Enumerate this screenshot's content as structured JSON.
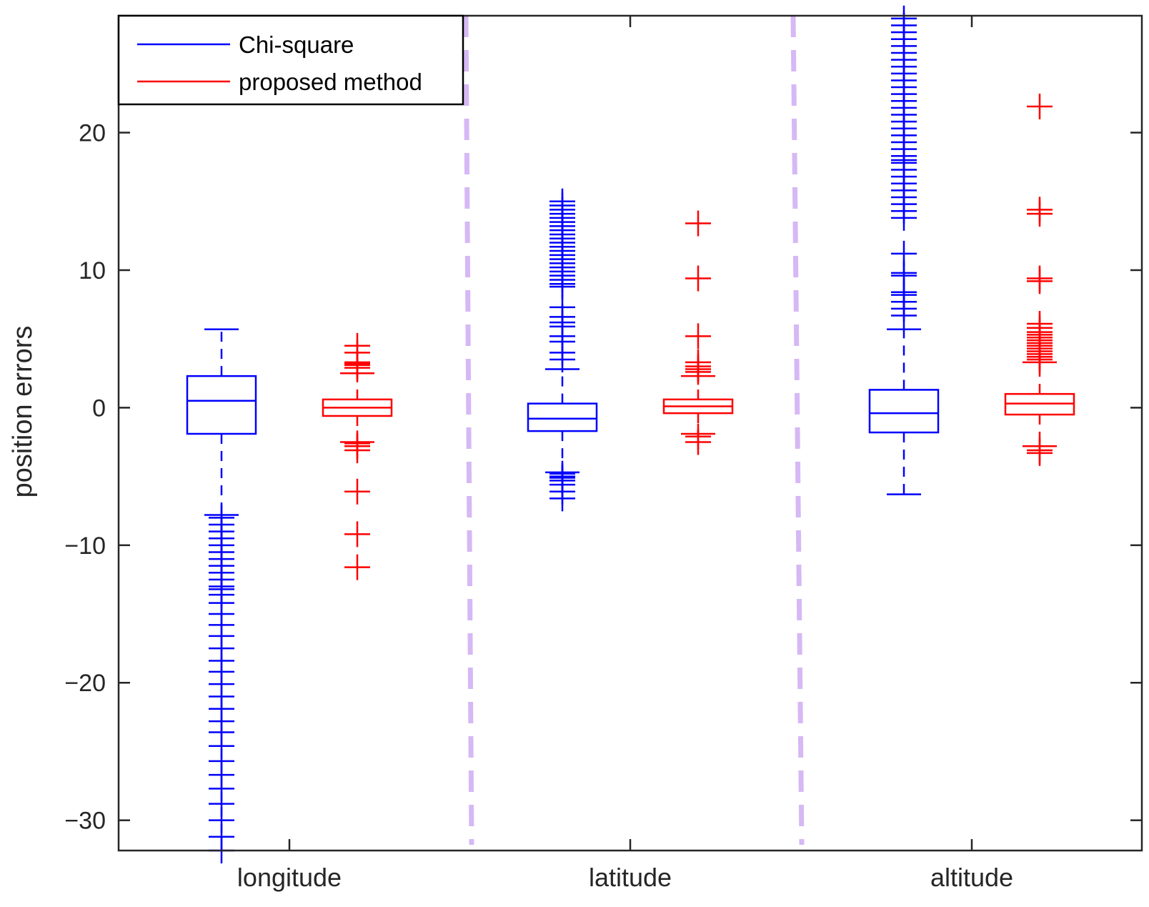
{
  "chart_data": {
    "type": "box",
    "title": "",
    "xlabel": "",
    "ylabel": "position errors",
    "ylim": [
      -32.2,
      28.5
    ],
    "yticks": [
      -30,
      -20,
      -10,
      0,
      10,
      20
    ],
    "ytick_labels": [
      "−30",
      "−20",
      "−10",
      "0",
      "10",
      "20"
    ],
    "grid": false,
    "legend_position": "top-left",
    "categories": [
      "longitude",
      "latitude",
      "altitude"
    ],
    "series": [
      {
        "name": "Chi-square",
        "color": "#0000ff",
        "boxes": [
          {
            "category": "longitude",
            "median": 0.5,
            "q1": -1.9,
            "q3": 2.3,
            "whisker_low": -7.8,
            "whisker_high": 5.7,
            "outliers": [
              -8,
              -8.5,
              -9,
              -9.5,
              -10,
              -10.5,
              -11,
              -11.5,
              -12,
              -12.5,
              -13,
              -13.2,
              -13.6,
              -14.2,
              -15,
              -15.8,
              -16.6,
              -17.5,
              -18.4,
              -19.2,
              -20.1,
              -21,
              -21.9,
              -22.8,
              -23.6,
              -24.6,
              -25.7,
              -26.7,
              -27.7,
              -28.8,
              -30,
              -31.2,
              -32.2
            ]
          },
          {
            "category": "latitude",
            "median": -0.8,
            "q1": -1.7,
            "q3": 0.3,
            "whisker_low": -4.7,
            "whisker_high": 2.8,
            "outliers": [
              -4.8,
              -5,
              -5.1,
              -5.3,
              -5.6,
              -6.1,
              -6.6,
              3.5,
              4,
              4.8,
              5.2,
              5.9,
              6.2,
              6.6,
              7.3,
              8.8,
              9,
              9.3,
              9.6,
              9.9,
              10.2,
              10.5,
              10.8,
              11.1,
              11.4,
              11.7,
              12,
              12.3,
              12.6,
              12.9,
              13.2,
              13.5,
              13.8,
              14.1,
              14.4,
              14.7,
              15
            ]
          },
          {
            "category": "altitude",
            "median": -0.4,
            "q1": -1.8,
            "q3": 1.3,
            "whisker_low": -6.3,
            "whisker_high": 5.7,
            "outliers": [
              6.7,
              7.2,
              7.7,
              8.2,
              8.4,
              9.6,
              9.8,
              11.2,
              13.8,
              14.3,
              14.8,
              15.3,
              15.8,
              16.3,
              16.8,
              17.3,
              17.8,
              18,
              18.3,
              18.8,
              19.3,
              19.8,
              20.3,
              20.8,
              21.3,
              21.8,
              22.3,
              22.8,
              23.3,
              23.8,
              24.3,
              24.8,
              25.3,
              25.8,
              26.3,
              26.8,
              27.3,
              27.8,
              28.3
            ]
          }
        ]
      },
      {
        "name": "proposed method",
        "color": "#ff0000",
        "boxes": [
          {
            "category": "longitude",
            "median": 0,
            "q1": -0.6,
            "q3": 0.6,
            "whisker_low": -2.5,
            "whisker_high": 2.5,
            "outliers": [
              2.9,
              3.1,
              3.2,
              3.3,
              4,
              4.5,
              -2.6,
              -2.8,
              -3.1,
              -6.1,
              -9.2,
              -11.6
            ]
          },
          {
            "category": "latitude",
            "median": 0.1,
            "q1": -0.4,
            "q3": 0.6,
            "whisker_low": -1.9,
            "whisker_high": 2.3,
            "outliers": [
              2.6,
              2.8,
              3,
              3.3,
              5.2,
              9.4,
              13.4,
              -2.1,
              -2.5
            ]
          },
          {
            "category": "altitude",
            "median": 0.3,
            "q1": -0.5,
            "q3": 1,
            "whisker_low": -2.8,
            "whisker_high": 3.3,
            "outliers": [
              3.5,
              3.7,
              3.9,
              4.1,
              4.3,
              4.5,
              4.7,
              4.9,
              5.1,
              5.3,
              5.5,
              5.8,
              6.1,
              9.2,
              9.4,
              14.1,
              14.4,
              21.9,
              -3.1,
              -3.3
            ]
          }
        ]
      }
    ],
    "separators": {
      "color": "#d6b8f5",
      "style": "dashed",
      "between": [
        [
          "longitude",
          "latitude"
        ],
        [
          "latitude",
          "altitude"
        ]
      ]
    }
  }
}
